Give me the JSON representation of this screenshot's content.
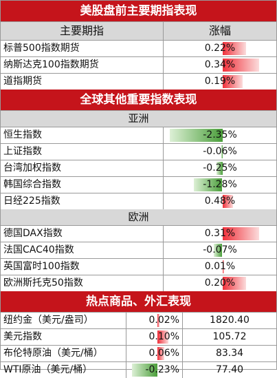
{
  "sec1": {
    "title": "美股盘前主要期指表现",
    "col_name": "主要期指",
    "col_chg": "涨幅",
    "rows": [
      {
        "name": "标普500指数期货",
        "chg": "0.22%",
        "value": 0.22
      },
      {
        "name": "纳斯达克100指数期货",
        "chg": "0.34%",
        "value": 0.34
      },
      {
        "name": "道指期货",
        "chg": "0.19%",
        "value": 0.19
      }
    ]
  },
  "sec2": {
    "title": "全球其他重要指数表现",
    "asia_label": "亚洲",
    "asia": [
      {
        "name": "恒生指数",
        "chg": "-2.35%",
        "value": -2.35
      },
      {
        "name": "上证指数",
        "chg": "-0.06%",
        "value": -0.06
      },
      {
        "name": "台湾加权指数",
        "chg": "-0.25%",
        "value": -0.25
      },
      {
        "name": "韩国综合指数",
        "chg": "-1.28%",
        "value": -1.28
      },
      {
        "name": "日经225指数",
        "chg": "0.48%",
        "value": 0.48
      }
    ],
    "europe_label": "欧洲",
    "europe": [
      {
        "name": "德国DAX指数",
        "chg": "0.31%",
        "value": 0.31
      },
      {
        "name": "法国CAC40指数",
        "chg": "-0.07%",
        "value": -0.07
      },
      {
        "name": "英国富时100指数",
        "chg": "0.01%",
        "value": 0.01
      },
      {
        "name": "欧洲斯托克50指数",
        "chg": "0.20%",
        "value": 0.2
      }
    ]
  },
  "sec3": {
    "title": "热点商品、外汇表现",
    "rows": [
      {
        "name": "纽约金（美元/盎司）",
        "chg": "0.02%",
        "value": 0.02,
        "price": "1820.40"
      },
      {
        "name": "美元指数",
        "chg": "0.10%",
        "value": 0.1,
        "price": "105.72"
      },
      {
        "name": "布伦特原油（美元/桶）",
        "chg": "0.06%",
        "value": 0.06,
        "price": "83.34"
      },
      {
        "name": "WTI原油（美元/桶）",
        "chg": "-0.23%",
        "value": -0.23,
        "price": "77.40"
      }
    ]
  },
  "colors": {
    "banner": "#c5141b",
    "positive": "#f0303a",
    "negative": "#4a9e3a"
  }
}
